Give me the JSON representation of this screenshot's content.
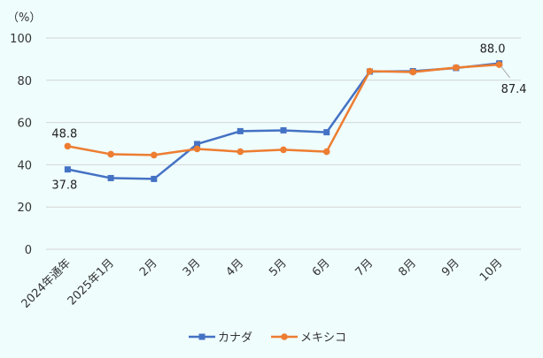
{
  "chart_data": {
    "type": "line",
    "title": "",
    "ylabel": "（%）",
    "xlabel": "",
    "ylim": [
      0,
      100
    ],
    "yticks": [
      0,
      20,
      40,
      60,
      80,
      100
    ],
    "grid": true,
    "legend_position": "bottom",
    "categories": [
      "2024年通年",
      "2025年1月",
      "2月",
      "3月",
      "4月",
      "5月",
      "6月",
      "7月",
      "8月",
      "9月",
      "10月"
    ],
    "series": [
      {
        "name": "カナダ",
        "color": "#4472c4",
        "marker": "square",
        "values": [
          37.8,
          33.7,
          33.3,
          49.8,
          55.9,
          56.3,
          55.4,
          84.1,
          84.3,
          85.8,
          88.0
        ]
      },
      {
        "name": "メキシコ",
        "color": "#ed7d31",
        "marker": "circle",
        "values": [
          48.8,
          45.0,
          44.6,
          47.5,
          46.2,
          47.1,
          46.2,
          84.3,
          83.9,
          86.0,
          87.4
        ]
      }
    ],
    "data_labels": [
      {
        "series": 0,
        "index": 0,
        "text": "37.8"
      },
      {
        "series": 1,
        "index": 0,
        "text": "48.8"
      },
      {
        "series": 0,
        "index": 10,
        "text": "88.0"
      },
      {
        "series": 1,
        "index": 10,
        "text": "87.4"
      }
    ]
  }
}
